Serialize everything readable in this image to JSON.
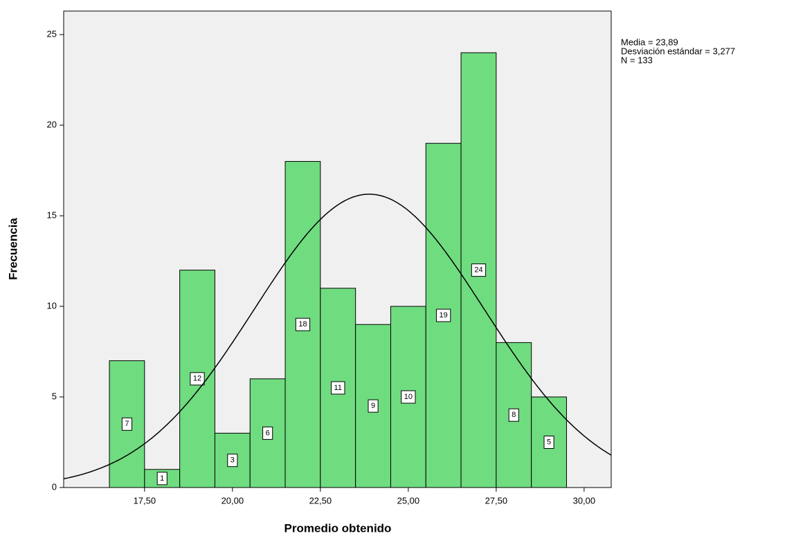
{
  "chart_data": {
    "type": "histogram",
    "x_label": "Promedio obtenido",
    "y_label": "Frecuencia",
    "bins": [
      16.5,
      17.5,
      18.5,
      19.5,
      20.5,
      21.5,
      22.5,
      23.5,
      24.5,
      25.5,
      26.5,
      27.5,
      28.5,
      29.5
    ],
    "values": [
      7,
      1,
      12,
      3,
      6,
      18,
      11,
      9,
      10,
      19,
      24,
      8,
      5
    ],
    "color": "#70dc80",
    "xlim": [
      15.2,
      30.77
    ],
    "xticks": [
      {
        "value": 17.5,
        "label": "17,50"
      },
      {
        "value": 20,
        "label": "20,00"
      },
      {
        "value": 22.5,
        "label": "22,50"
      },
      {
        "value": 25,
        "label": "25,00"
      },
      {
        "value": 27.5,
        "label": "27,50"
      },
      {
        "value": 30,
        "label": "30,00"
      }
    ],
    "ylim": [
      0,
      26.3
    ],
    "yticks": [
      0,
      5,
      10,
      15,
      20,
      25
    ],
    "normal_curve": {
      "mean": 23.89,
      "sd": 3.277,
      "n": 133
    },
    "stats_text": [
      "Media = 23,89",
      "Desviación estándar = 3,277",
      "N = 133"
    ]
  }
}
